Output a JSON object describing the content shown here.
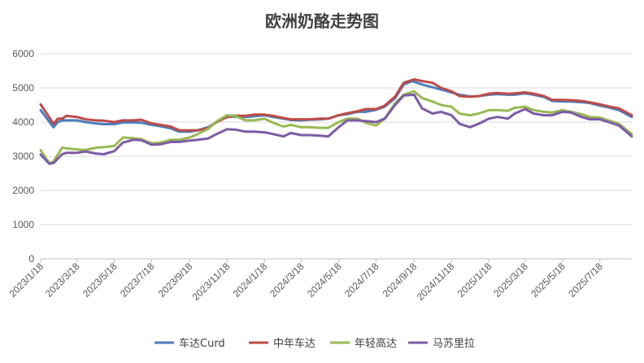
{
  "chart_data": {
    "type": "line",
    "title": "欧洲奶酪走势图",
    "xlabel": "",
    "ylabel": "",
    "ylim": [
      0,
      6000
    ],
    "yticks": [
      0,
      1000,
      2000,
      3000,
      4000,
      5000,
      6000
    ],
    "x_tick_labels": [
      "2023/1/18",
      "2023/3/18",
      "2023/5/18",
      "2023/7/18",
      "2023/9/18",
      "2023/11/18",
      "2024/1/18",
      "2024/3/18",
      "2024/5/18",
      "2024/7/18",
      "2024/9/18",
      "2024/11/18",
      "2025/1/18",
      "2025/3/18",
      "2025/5/18",
      "2025/7/18"
    ],
    "x_start": "2023/1/18",
    "x_end": "2025/9/8",
    "grid": "horizontal",
    "legend_position": "bottom",
    "series": [
      {
        "name": "车达Curd",
        "color": "#4a7ebb",
        "points": [
          [
            "2023/1/18",
            4350
          ],
          [
            "2023/2/8",
            3850
          ],
          [
            "2023/2/15",
            4000
          ],
          [
            "2023/2/22",
            4050
          ],
          [
            "2023/3/1",
            4050
          ],
          [
            "2023/3/18",
            4050
          ],
          [
            "2023/4/1",
            4000
          ],
          [
            "2023/4/18",
            3960
          ],
          [
            "2023/5/1",
            3940
          ],
          [
            "2023/5/18",
            3940
          ],
          [
            "2023/6/1",
            3990
          ],
          [
            "2023/6/18",
            3990
          ],
          [
            "2023/7/1",
            3980
          ],
          [
            "2023/7/18",
            3920
          ],
          [
            "2023/8/1",
            3880
          ],
          [
            "2023/8/18",
            3820
          ],
          [
            "2023/9/1",
            3720
          ],
          [
            "2023/9/18",
            3720
          ],
          [
            "2023/10/1",
            3760
          ],
          [
            "2023/10/18",
            3850
          ],
          [
            "2023/11/1",
            4000
          ],
          [
            "2023/11/18",
            4150
          ],
          [
            "2023/12/1",
            4160
          ],
          [
            "2023/12/18",
            4150
          ],
          [
            "2024/1/1",
            4170
          ],
          [
            "2024/1/18",
            4200
          ],
          [
            "2024/2/1",
            4150
          ],
          [
            "2024/2/18",
            4100
          ],
          [
            "2024/3/1",
            4060
          ],
          [
            "2024/3/18",
            4050
          ],
          [
            "2024/4/1",
            4070
          ],
          [
            "2024/4/18",
            4080
          ],
          [
            "2024/5/1",
            4100
          ],
          [
            "2024/5/18",
            4200
          ],
          [
            "2024/6/1",
            4230
          ],
          [
            "2024/6/18",
            4300
          ],
          [
            "2024/7/1",
            4300
          ],
          [
            "2024/7/18",
            4360
          ],
          [
            "2024/8/1",
            4450
          ],
          [
            "2024/8/18",
            4700
          ],
          [
            "2024/9/1",
            5100
          ],
          [
            "2024/9/15",
            5200
          ],
          [
            "2024/10/1",
            5100
          ],
          [
            "2024/10/18",
            5020
          ],
          [
            "2024/11/1",
            4950
          ],
          [
            "2024/11/18",
            4870
          ],
          [
            "2024/12/1",
            4800
          ],
          [
            "2024/12/18",
            4750
          ],
          [
            "2025/1/1",
            4760
          ],
          [
            "2025/1/18",
            4800
          ],
          [
            "2025/2/1",
            4820
          ],
          [
            "2025/2/18",
            4800
          ],
          [
            "2025/3/1",
            4800
          ],
          [
            "2025/3/18",
            4840
          ],
          [
            "2025/4/1",
            4800
          ],
          [
            "2025/4/18",
            4730
          ],
          [
            "2025/5/1",
            4620
          ],
          [
            "2025/5/18",
            4600
          ],
          [
            "2025/6/1",
            4600
          ],
          [
            "2025/6/18",
            4580
          ],
          [
            "2025/7/1",
            4560
          ],
          [
            "2025/7/18",
            4480
          ],
          [
            "2025/8/1",
            4430
          ],
          [
            "2025/8/18",
            4350
          ],
          [
            "2025/9/8",
            4150
          ]
        ]
      },
      {
        "name": "中年车达",
        "color": "#be4b48",
        "points": [
          [
            "2023/1/18",
            4520
          ],
          [
            "2023/2/8",
            3950
          ],
          [
            "2023/2/15",
            4100
          ],
          [
            "2023/2/22",
            4100
          ],
          [
            "2023/3/1",
            4180
          ],
          [
            "2023/3/18",
            4150
          ],
          [
            "2023/4/1",
            4080
          ],
          [
            "2023/4/18",
            4050
          ],
          [
            "2023/5/1",
            4040
          ],
          [
            "2023/5/18",
            4000
          ],
          [
            "2023/6/1",
            4050
          ],
          [
            "2023/6/18",
            4050
          ],
          [
            "2023/7/1",
            4070
          ],
          [
            "2023/7/18",
            3960
          ],
          [
            "2023/8/1",
            3920
          ],
          [
            "2023/8/18",
            3870
          ],
          [
            "2023/9/1",
            3760
          ],
          [
            "2023/9/18",
            3760
          ],
          [
            "2023/10/1",
            3760
          ],
          [
            "2023/10/18",
            3820
          ],
          [
            "2023/11/1",
            4000
          ],
          [
            "2023/11/18",
            4150
          ],
          [
            "2023/12/1",
            4190
          ],
          [
            "2023/12/18",
            4180
          ],
          [
            "2024/1/1",
            4220
          ],
          [
            "2024/1/18",
            4220
          ],
          [
            "2024/2/1",
            4180
          ],
          [
            "2024/2/18",
            4120
          ],
          [
            "2024/3/1",
            4080
          ],
          [
            "2024/3/18",
            4080
          ],
          [
            "2024/4/1",
            4080
          ],
          [
            "2024/4/18",
            4100
          ],
          [
            "2024/5/1",
            4100
          ],
          [
            "2024/5/18",
            4200
          ],
          [
            "2024/6/1",
            4260
          ],
          [
            "2024/6/18",
            4320
          ],
          [
            "2024/7/1",
            4380
          ],
          [
            "2024/7/18",
            4380
          ],
          [
            "2024/8/1",
            4480
          ],
          [
            "2024/8/18",
            4750
          ],
          [
            "2024/9/1",
            5150
          ],
          [
            "2024/9/18",
            5250
          ],
          [
            "2024/10/1",
            5200
          ],
          [
            "2024/10/18",
            5150
          ],
          [
            "2024/11/1",
            5000
          ],
          [
            "2024/11/18",
            4900
          ],
          [
            "2024/12/1",
            4760
          ],
          [
            "2024/12/18",
            4740
          ],
          [
            "2025/1/1",
            4760
          ],
          [
            "2025/1/18",
            4830
          ],
          [
            "2025/2/1",
            4850
          ],
          [
            "2025/2/18",
            4830
          ],
          [
            "2025/3/1",
            4840
          ],
          [
            "2025/3/18",
            4870
          ],
          [
            "2025/4/1",
            4830
          ],
          [
            "2025/4/18",
            4760
          ],
          [
            "2025/5/1",
            4650
          ],
          [
            "2025/5/18",
            4650
          ],
          [
            "2025/6/1",
            4640
          ],
          [
            "2025/6/18",
            4620
          ],
          [
            "2025/7/1",
            4580
          ],
          [
            "2025/7/18",
            4520
          ],
          [
            "2025/8/1",
            4460
          ],
          [
            "2025/8/18",
            4400
          ],
          [
            "2025/9/8",
            4200
          ]
        ]
      },
      {
        "name": "年轻高达",
        "color": "#98b954",
        "points": [
          [
            "2023/1/18",
            3180
          ],
          [
            "2023/2/1",
            2800
          ],
          [
            "2023/2/8",
            2850
          ],
          [
            "2023/2/22",
            3250
          ],
          [
            "2023/3/1",
            3230
          ],
          [
            "2023/3/18",
            3200
          ],
          [
            "2023/4/1",
            3180
          ],
          [
            "2023/4/18",
            3250
          ],
          [
            "2023/5/1",
            3270
          ],
          [
            "2023/5/18",
            3300
          ],
          [
            "2023/6/1",
            3550
          ],
          [
            "2023/6/18",
            3530
          ],
          [
            "2023/7/1",
            3500
          ],
          [
            "2023/7/18",
            3380
          ],
          [
            "2023/8/1",
            3400
          ],
          [
            "2023/8/18",
            3480
          ],
          [
            "2023/9/1",
            3480
          ],
          [
            "2023/9/18",
            3550
          ],
          [
            "2023/10/1",
            3650
          ],
          [
            "2023/10/18",
            3800
          ],
          [
            "2023/11/1",
            4020
          ],
          [
            "2023/11/18",
            4200
          ],
          [
            "2023/12/1",
            4180
          ],
          [
            "2023/12/18",
            4050
          ],
          [
            "2024/1/1",
            4050
          ],
          [
            "2024/1/18",
            4100
          ],
          [
            "2024/2/1",
            3980
          ],
          [
            "2024/2/18",
            3870
          ],
          [
            "2024/3/1",
            3920
          ],
          [
            "2024/3/18",
            3850
          ],
          [
            "2024/4/1",
            3850
          ],
          [
            "2024/4/18",
            3830
          ],
          [
            "2024/5/1",
            3830
          ],
          [
            "2024/5/18",
            4000
          ],
          [
            "2024/6/1",
            4100
          ],
          [
            "2024/6/18",
            4100
          ],
          [
            "2024/7/1",
            3980
          ],
          [
            "2024/7/18",
            3900
          ],
          [
            "2024/8/1",
            4100
          ],
          [
            "2024/8/18",
            4550
          ],
          [
            "2024/9/1",
            4800
          ],
          [
            "2024/9/18",
            4900
          ],
          [
            "2024/10/1",
            4700
          ],
          [
            "2024/10/18",
            4600
          ],
          [
            "2024/11/1",
            4500
          ],
          [
            "2024/11/18",
            4450
          ],
          [
            "2024/12/1",
            4250
          ],
          [
            "2024/12/18",
            4200
          ],
          [
            "2025/1/1",
            4250
          ],
          [
            "2025/1/18",
            4350
          ],
          [
            "2025/2/1",
            4350
          ],
          [
            "2025/2/18",
            4330
          ],
          [
            "2025/3/1",
            4420
          ],
          [
            "2025/3/18",
            4450
          ],
          [
            "2025/4/1",
            4350
          ],
          [
            "2025/4/18",
            4300
          ],
          [
            "2025/5/1",
            4280
          ],
          [
            "2025/5/18",
            4350
          ],
          [
            "2025/6/1",
            4300
          ],
          [
            "2025/6/18",
            4230
          ],
          [
            "2025/7/1",
            4150
          ],
          [
            "2025/7/18",
            4130
          ],
          [
            "2025/8/1",
            4050
          ],
          [
            "2025/8/18",
            3950
          ],
          [
            "2025/9/8",
            3650
          ]
        ]
      },
      {
        "name": "马苏里拉",
        "color": "#7d5ba6",
        "points": [
          [
            "2023/1/18",
            3050
          ],
          [
            "2023/2/1",
            2780
          ],
          [
            "2023/2/8",
            2800
          ],
          [
            "2023/2/22",
            3060
          ],
          [
            "2023/3/1",
            3100
          ],
          [
            "2023/3/18",
            3100
          ],
          [
            "2023/4/1",
            3140
          ],
          [
            "2023/4/18",
            3080
          ],
          [
            "2023/5/1",
            3060
          ],
          [
            "2023/5/18",
            3150
          ],
          [
            "2023/6/1",
            3400
          ],
          [
            "2023/6/18",
            3480
          ],
          [
            "2023/7/1",
            3470
          ],
          [
            "2023/7/18",
            3340
          ],
          [
            "2023/8/1",
            3350
          ],
          [
            "2023/8/18",
            3420
          ],
          [
            "2023/9/1",
            3420
          ],
          [
            "2023/9/18",
            3460
          ],
          [
            "2023/10/1",
            3480
          ],
          [
            "2023/10/18",
            3520
          ],
          [
            "2023/11/1",
            3650
          ],
          [
            "2023/11/18",
            3790
          ],
          [
            "2023/12/1",
            3780
          ],
          [
            "2023/12/18",
            3720
          ],
          [
            "2024/1/1",
            3720
          ],
          [
            "2024/1/18",
            3700
          ],
          [
            "2024/2/1",
            3650
          ],
          [
            "2024/2/18",
            3580
          ],
          [
            "2024/3/1",
            3680
          ],
          [
            "2024/3/18",
            3620
          ],
          [
            "2024/4/1",
            3620
          ],
          [
            "2024/4/18",
            3600
          ],
          [
            "2024/5/1",
            3580
          ],
          [
            "2024/5/18",
            3850
          ],
          [
            "2024/6/1",
            4050
          ],
          [
            "2024/6/18",
            4050
          ],
          [
            "2024/7/1",
            4030
          ],
          [
            "2024/7/18",
            4000
          ],
          [
            "2024/8/1",
            4100
          ],
          [
            "2024/8/18",
            4500
          ],
          [
            "2024/9/1",
            4780
          ],
          [
            "2024/9/18",
            4800
          ],
          [
            "2024/10/1",
            4400
          ],
          [
            "2024/10/18",
            4250
          ],
          [
            "2024/11/1",
            4300
          ],
          [
            "2024/11/18",
            4200
          ],
          [
            "2024/12/1",
            3950
          ],
          [
            "2024/12/18",
            3850
          ],
          [
            "2025/1/1",
            3950
          ],
          [
            "2025/1/18",
            4100
          ],
          [
            "2025/2/1",
            4150
          ],
          [
            "2025/2/18",
            4100
          ],
          [
            "2025/3/1",
            4250
          ],
          [
            "2025/3/18",
            4380
          ],
          [
            "2025/4/1",
            4250
          ],
          [
            "2025/4/18",
            4200
          ],
          [
            "2025/5/1",
            4200
          ],
          [
            "2025/5/18",
            4300
          ],
          [
            "2025/6/1",
            4280
          ],
          [
            "2025/6/18",
            4150
          ],
          [
            "2025/7/1",
            4080
          ],
          [
            "2025/7/18",
            4080
          ],
          [
            "2025/8/1",
            4000
          ],
          [
            "2025/8/18",
            3900
          ],
          [
            "2025/9/8",
            3580
          ]
        ]
      }
    ]
  }
}
